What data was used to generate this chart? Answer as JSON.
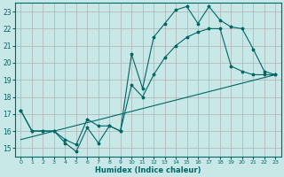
{
  "xlabel": "Humidex (Indice chaleur)",
  "bg_color": "#c8e8e8",
  "grid_color": "#d4d4d4",
  "line_color": "#006666",
  "xlim": [
    -0.5,
    23.5
  ],
  "ylim": [
    14.5,
    23.5
  ],
  "xticks": [
    0,
    1,
    2,
    3,
    4,
    5,
    6,
    7,
    8,
    9,
    10,
    11,
    12,
    13,
    14,
    15,
    16,
    17,
    18,
    19,
    20,
    21,
    22,
    23
  ],
  "yticks": [
    15,
    16,
    17,
    18,
    19,
    20,
    21,
    22,
    23
  ],
  "line1_x": [
    0,
    1,
    2,
    3,
    4,
    5,
    6,
    7,
    8,
    9,
    10,
    11,
    12,
    13,
    14,
    15,
    16,
    17,
    18,
    19,
    20,
    21,
    22,
    23
  ],
  "line1_y": [
    17.2,
    16.0,
    16.0,
    16.0,
    15.3,
    14.8,
    16.2,
    15.3,
    16.3,
    16.0,
    20.5,
    18.5,
    21.5,
    22.3,
    23.1,
    23.3,
    22.3,
    23.3,
    22.5,
    22.1,
    22.0,
    20.8,
    19.5,
    19.3
  ],
  "line2_x": [
    0,
    1,
    2,
    3,
    4,
    5,
    6,
    7,
    8,
    9,
    10,
    11,
    12,
    13,
    14,
    15,
    16,
    17,
    18,
    19,
    20,
    21,
    22,
    23
  ],
  "line2_y": [
    17.2,
    16.0,
    16.0,
    16.0,
    15.5,
    15.2,
    16.7,
    16.3,
    16.3,
    16.0,
    18.7,
    18.0,
    19.3,
    20.3,
    21.0,
    21.5,
    21.8,
    22.0,
    22.0,
    19.8,
    19.5,
    19.3,
    19.3,
    19.3
  ],
  "line3_x": [
    0,
    23
  ],
  "line3_y": [
    15.5,
    19.3
  ]
}
